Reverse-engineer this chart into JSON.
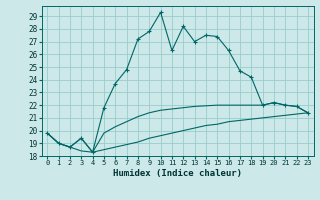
{
  "title": "",
  "xlabel": "Humidex (Indice chaleur)",
  "background_color": "#cce8e8",
  "line_color": "#006666",
  "grid_color": "#99cccc",
  "xlim": [
    -0.5,
    23.5
  ],
  "ylim": [
    18,
    29.8
  ],
  "yticks": [
    18,
    19,
    20,
    21,
    22,
    23,
    24,
    25,
    26,
    27,
    28,
    29
  ],
  "xticks": [
    0,
    1,
    2,
    3,
    4,
    5,
    6,
    7,
    8,
    9,
    10,
    11,
    12,
    13,
    14,
    15,
    16,
    17,
    18,
    19,
    20,
    21,
    22,
    23
  ],
  "main_line": [
    [
      0,
      19.8
    ],
    [
      1,
      19.0
    ],
    [
      2,
      18.7
    ],
    [
      3,
      19.4
    ],
    [
      4,
      18.3
    ],
    [
      5,
      21.8
    ],
    [
      6,
      23.7
    ],
    [
      7,
      24.8
    ],
    [
      8,
      27.2
    ],
    [
      9,
      27.8
    ],
    [
      10,
      29.3
    ],
    [
      11,
      26.3
    ],
    [
      12,
      28.2
    ],
    [
      13,
      27.0
    ],
    [
      14,
      27.5
    ],
    [
      15,
      27.4
    ],
    [
      16,
      26.3
    ],
    [
      17,
      24.7
    ],
    [
      18,
      24.2
    ],
    [
      19,
      22.0
    ],
    [
      20,
      22.2
    ],
    [
      21,
      22.0
    ],
    [
      22,
      21.9
    ],
    [
      23,
      21.4
    ]
  ],
  "lower_line": [
    [
      0,
      19.8
    ],
    [
      1,
      19.0
    ],
    [
      2,
      18.7
    ],
    [
      3,
      18.4
    ],
    [
      4,
      18.3
    ],
    [
      5,
      18.5
    ],
    [
      6,
      18.7
    ],
    [
      7,
      18.9
    ],
    [
      8,
      19.1
    ],
    [
      9,
      19.4
    ],
    [
      10,
      19.6
    ],
    [
      11,
      19.8
    ],
    [
      12,
      20.0
    ],
    [
      13,
      20.2
    ],
    [
      14,
      20.4
    ],
    [
      15,
      20.5
    ],
    [
      16,
      20.7
    ],
    [
      17,
      20.8
    ],
    [
      18,
      20.9
    ],
    [
      19,
      21.0
    ],
    [
      20,
      21.1
    ],
    [
      21,
      21.2
    ],
    [
      22,
      21.3
    ],
    [
      23,
      21.4
    ]
  ],
  "upper_line": [
    [
      0,
      19.8
    ],
    [
      1,
      19.0
    ],
    [
      2,
      18.7
    ],
    [
      3,
      19.4
    ],
    [
      4,
      18.3
    ],
    [
      5,
      19.8
    ],
    [
      6,
      20.3
    ],
    [
      7,
      20.7
    ],
    [
      8,
      21.1
    ],
    [
      9,
      21.4
    ],
    [
      10,
      21.6
    ],
    [
      11,
      21.7
    ],
    [
      12,
      21.8
    ],
    [
      13,
      21.9
    ],
    [
      14,
      21.95
    ],
    [
      15,
      22.0
    ],
    [
      16,
      22.0
    ],
    [
      17,
      22.0
    ],
    [
      18,
      22.0
    ],
    [
      19,
      22.0
    ],
    [
      20,
      22.2
    ],
    [
      21,
      22.0
    ],
    [
      22,
      21.9
    ],
    [
      23,
      21.4
    ]
  ]
}
